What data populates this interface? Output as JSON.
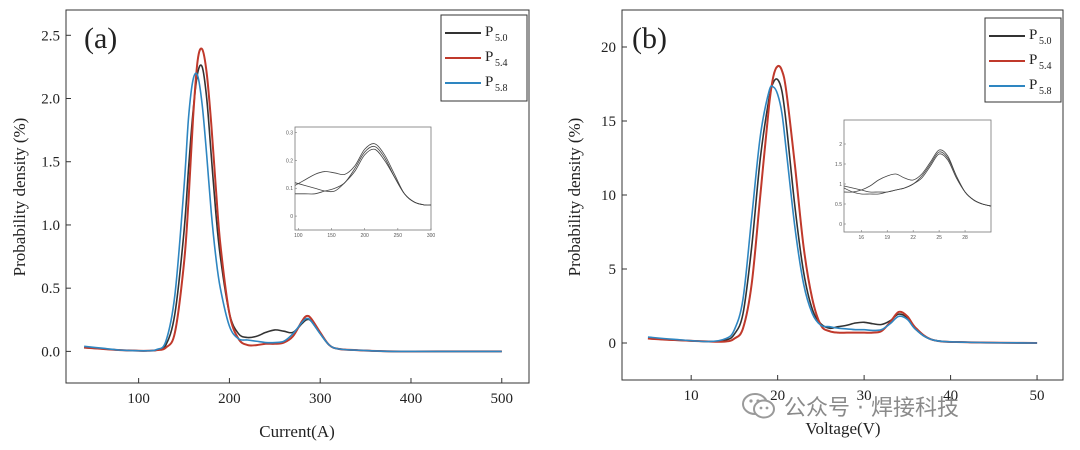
{
  "figure": {
    "watermark": "公众号 · 焊接科技"
  },
  "chart_data": [
    {
      "type": "line",
      "panel_label": "(a)",
      "xlabel": "Current(A)",
      "ylabel": "Probability density (%)",
      "xlim": [
        20,
        530
      ],
      "ylim": [
        -0.25,
        2.7
      ],
      "xticks": [
        100,
        200,
        300,
        400,
        500
      ],
      "xtick_labels": [
        "100",
        "200",
        "300",
        "400",
        "500"
      ],
      "yticks": [
        0.0,
        0.5,
        1.0,
        1.5,
        2.0,
        2.5
      ],
      "ytick_labels": [
        "0.0",
        "0.5",
        "1.0",
        "1.5",
        "2.0",
        "2.5"
      ],
      "legend_position": "top-right",
      "series": [
        {
          "name": "P",
          "subscript": "5.0",
          "color": "#333333",
          "x": [
            40,
            60,
            80,
            100,
            110,
            120,
            130,
            140,
            150,
            155,
            160,
            165,
            170,
            175,
            180,
            185,
            190,
            200,
            210,
            220,
            230,
            240,
            250,
            260,
            270,
            280,
            285,
            290,
            300,
            310,
            320,
            340,
            380,
            450,
            500
          ],
          "y": [
            0.03,
            0.02,
            0.01,
            0.005,
            0.005,
            0.01,
            0.05,
            0.3,
            0.95,
            1.45,
            1.9,
            2.2,
            2.25,
            2.0,
            1.55,
            1.1,
            0.75,
            0.3,
            0.14,
            0.11,
            0.12,
            0.15,
            0.17,
            0.16,
            0.15,
            0.22,
            0.25,
            0.24,
            0.14,
            0.05,
            0.02,
            0.01,
            0.0,
            0.0,
            0.0
          ]
        },
        {
          "name": "P",
          "subscript": "5.4",
          "color": "#c0392b",
          "x": [
            40,
            60,
            80,
            100,
            110,
            120,
            130,
            140,
            150,
            155,
            160,
            165,
            170,
            175,
            180,
            185,
            190,
            200,
            210,
            220,
            230,
            240,
            250,
            260,
            270,
            280,
            285,
            290,
            300,
            310,
            320,
            340,
            380,
            450,
            500
          ],
          "y": [
            0.03,
            0.02,
            0.01,
            0.005,
            0.005,
            0.01,
            0.03,
            0.15,
            0.7,
            1.2,
            1.85,
            2.3,
            2.39,
            2.2,
            1.8,
            1.3,
            0.85,
            0.3,
            0.1,
            0.05,
            0.05,
            0.06,
            0.06,
            0.07,
            0.12,
            0.24,
            0.28,
            0.26,
            0.15,
            0.05,
            0.02,
            0.01,
            0.0,
            0.0,
            0.0
          ]
        },
        {
          "name": "P",
          "subscript": "5.8",
          "color": "#2e86c1",
          "x": [
            40,
            60,
            80,
            100,
            110,
            120,
            130,
            140,
            150,
            155,
            160,
            165,
            170,
            175,
            180,
            185,
            190,
            200,
            210,
            220,
            230,
            240,
            250,
            260,
            270,
            280,
            285,
            290,
            300,
            310,
            320,
            340,
            380,
            450,
            500
          ],
          "y": [
            0.04,
            0.025,
            0.01,
            0.005,
            0.005,
            0.015,
            0.08,
            0.45,
            1.3,
            1.85,
            2.15,
            2.18,
            1.95,
            1.55,
            1.1,
            0.75,
            0.5,
            0.2,
            0.1,
            0.09,
            0.08,
            0.07,
            0.07,
            0.08,
            0.14,
            0.23,
            0.26,
            0.24,
            0.14,
            0.05,
            0.02,
            0.01,
            0.0,
            0.0,
            0.0
          ]
        }
      ],
      "inset": {
        "xlim": [
          95,
          300
        ],
        "ylim": [
          -0.05,
          0.32
        ],
        "xticks": [
          100,
          150,
          200,
          250,
          300
        ],
        "yticks": [
          0.0,
          0.1,
          0.2,
          0.3
        ],
        "x": [
          95,
          110,
          125,
          140,
          155,
          170,
          185,
          200,
          215,
          230,
          245,
          260,
          275,
          290,
          300
        ],
        "series_y": [
          [
            0.11,
            0.13,
            0.15,
            0.16,
            0.155,
            0.15,
            0.18,
            0.24,
            0.26,
            0.22,
            0.15,
            0.08,
            0.05,
            0.04,
            0.04
          ],
          [
            0.08,
            0.08,
            0.08,
            0.09,
            0.1,
            0.12,
            0.17,
            0.23,
            0.25,
            0.21,
            0.14,
            0.08,
            0.05,
            0.04,
            0.04
          ],
          [
            0.12,
            0.11,
            0.1,
            0.09,
            0.09,
            0.12,
            0.16,
            0.22,
            0.24,
            0.2,
            0.14,
            0.08,
            0.05,
            0.04,
            0.04
          ]
        ]
      }
    },
    {
      "type": "line",
      "panel_label": "(b)",
      "xlabel": "Voltage(V)",
      "ylabel": "Probability density (%)",
      "xlim": [
        2,
        53
      ],
      "ylim": [
        -2.5,
        22.5
      ],
      "xticks": [
        10,
        20,
        30,
        40,
        50
      ],
      "xtick_labels": [
        "10",
        "20",
        "30",
        "40",
        "50"
      ],
      "yticks": [
        0,
        5,
        10,
        15,
        20
      ],
      "ytick_labels": [
        "0",
        "5",
        "10",
        "15",
        "20"
      ],
      "legend_position": "top-right",
      "series": [
        {
          "name": "P",
          "subscript": "5.0",
          "color": "#333333",
          "x": [
            5,
            8,
            12,
            14,
            15,
            16,
            17,
            18,
            19,
            19.5,
            20,
            20.5,
            21,
            22,
            23,
            24,
            25,
            26,
            27,
            28,
            29,
            30,
            31,
            32,
            33,
            34,
            35,
            36,
            38,
            42,
            50
          ],
          "y": [
            0.3,
            0.2,
            0.1,
            0.2,
            0.6,
            2.0,
            6.5,
            12.5,
            16.5,
            17.6,
            17.8,
            17.0,
            14.8,
            9.2,
            4.8,
            2.3,
            1.3,
            1.0,
            1.1,
            1.2,
            1.35,
            1.4,
            1.3,
            1.25,
            1.5,
            1.95,
            1.7,
            0.9,
            0.2,
            0.05,
            0.0
          ]
        },
        {
          "name": "P",
          "subscript": "5.4",
          "color": "#c0392b",
          "x": [
            5,
            8,
            12,
            14,
            15,
            16,
            17,
            18,
            19,
            19.5,
            20,
            20.5,
            21,
            22,
            23,
            24,
            25,
            26,
            27,
            28,
            29,
            30,
            31,
            32,
            33,
            34,
            35,
            36,
            38,
            42,
            50
          ],
          "y": [
            0.3,
            0.2,
            0.1,
            0.1,
            0.3,
            1.0,
            4.0,
            10.0,
            16.0,
            18.0,
            18.7,
            18.4,
            17.0,
            12.0,
            6.5,
            3.0,
            1.2,
            0.8,
            0.7,
            0.7,
            0.7,
            0.7,
            0.7,
            0.8,
            1.4,
            2.1,
            1.8,
            1.0,
            0.2,
            0.05,
            0.0
          ]
        },
        {
          "name": "P",
          "subscript": "5.8",
          "color": "#2e86c1",
          "x": [
            5,
            8,
            12,
            14,
            15,
            16,
            17,
            18,
            19,
            19.5,
            20,
            20.5,
            21,
            22,
            23,
            24,
            25,
            26,
            27,
            28,
            29,
            30,
            31,
            32,
            33,
            34,
            35,
            36,
            38,
            42,
            50
          ],
          "y": [
            0.4,
            0.25,
            0.1,
            0.3,
            0.9,
            3.0,
            8.5,
            14.0,
            17.0,
            17.3,
            16.8,
            15.5,
            13.0,
            7.8,
            4.0,
            2.0,
            1.2,
            1.1,
            1.0,
            0.95,
            0.9,
            0.9,
            0.85,
            0.9,
            1.3,
            1.8,
            1.6,
            0.9,
            0.2,
            0.05,
            0.0
          ]
        }
      ],
      "inset": {
        "xlim": [
          14,
          31
        ],
        "ylim": [
          -0.2,
          2.6
        ],
        "xticks": [
          16,
          19,
          22,
          25,
          28
        ],
        "yticks": [
          0.0,
          0.5,
          1.0,
          1.5,
          2.0
        ],
        "x": [
          14,
          15,
          16,
          17,
          18,
          19,
          20,
          21,
          22,
          23,
          24,
          25,
          26,
          27,
          28,
          29,
          30,
          31
        ],
        "series_y": [
          [
            0.8,
            0.8,
            0.85,
            0.95,
            1.1,
            1.2,
            1.25,
            1.15,
            1.1,
            1.25,
            1.55,
            1.85,
            1.7,
            1.2,
            0.8,
            0.6,
            0.5,
            0.45
          ],
          [
            0.9,
            0.8,
            0.75,
            0.75,
            0.75,
            0.8,
            0.85,
            0.9,
            1.0,
            1.2,
            1.5,
            1.8,
            1.65,
            1.2,
            0.8,
            0.6,
            0.5,
            0.45
          ],
          [
            0.95,
            0.9,
            0.85,
            0.8,
            0.8,
            0.8,
            0.85,
            0.9,
            1.0,
            1.15,
            1.45,
            1.75,
            1.6,
            1.15,
            0.8,
            0.6,
            0.5,
            0.45
          ]
        ]
      }
    }
  ]
}
